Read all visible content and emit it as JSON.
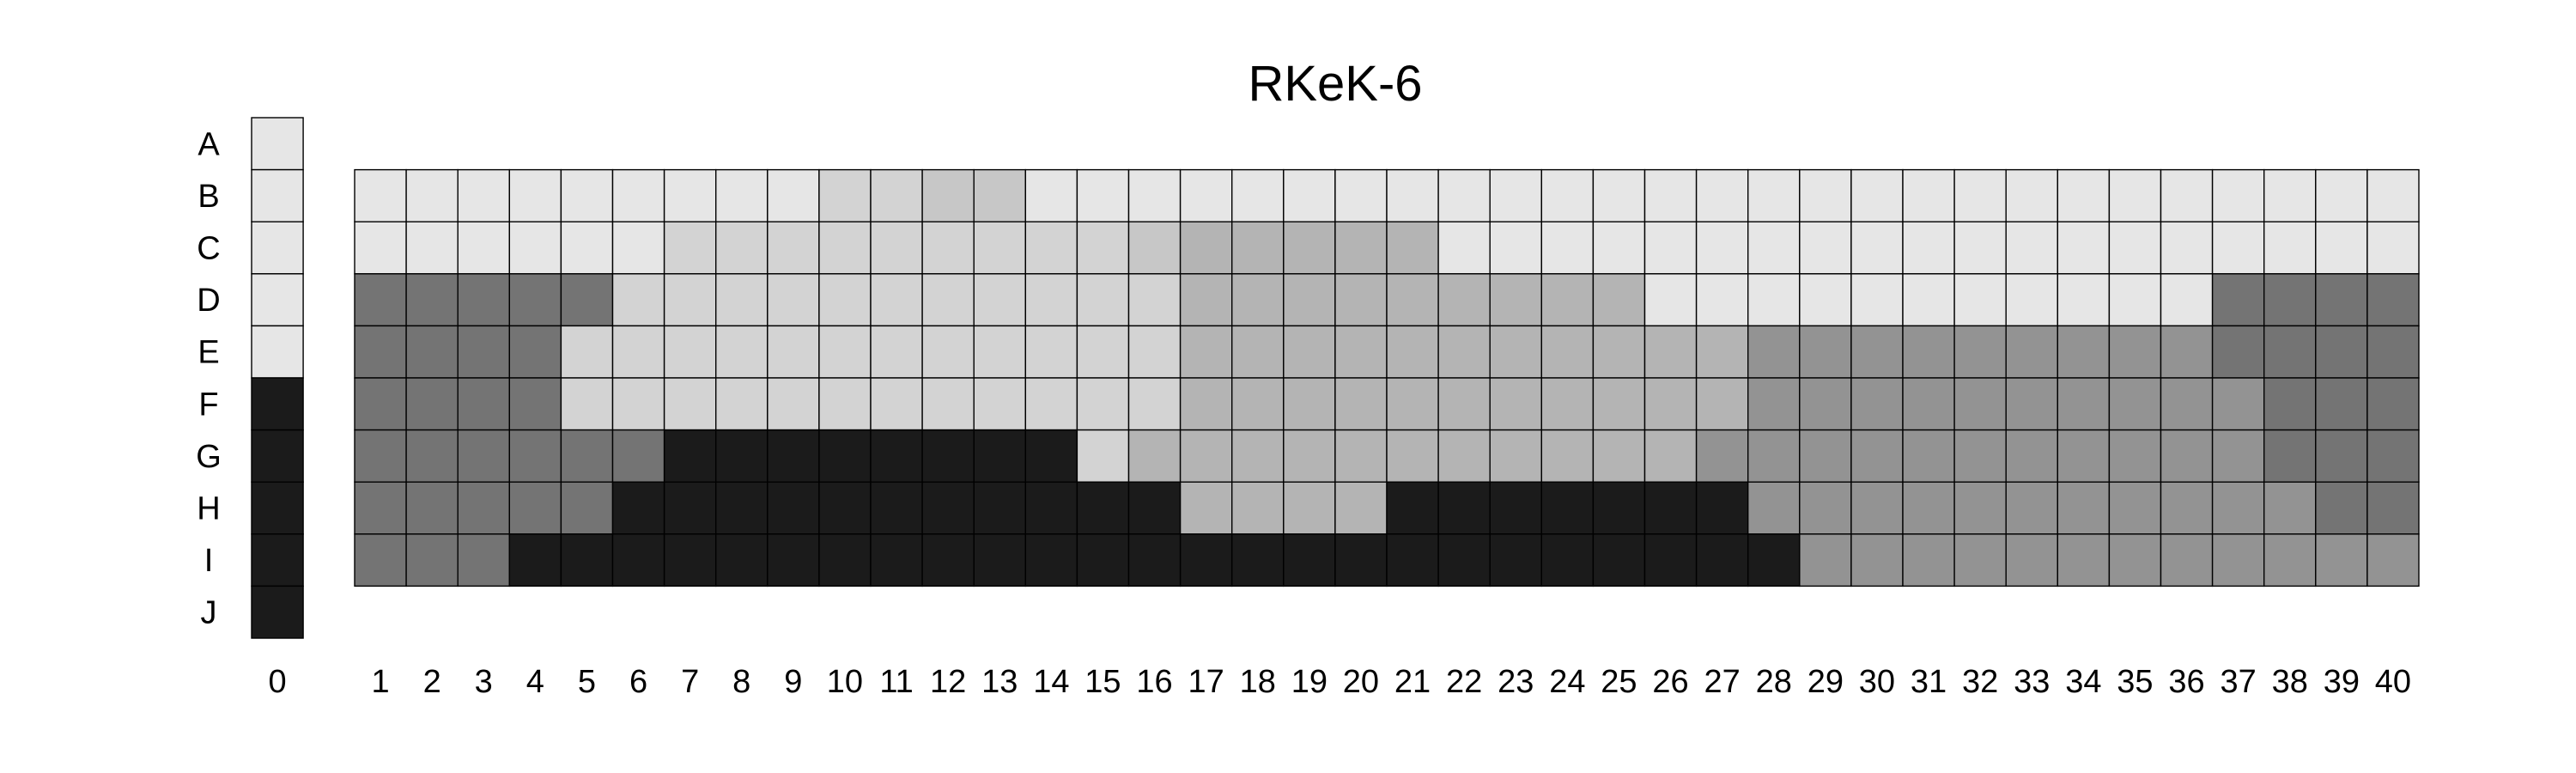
{
  "chart_data": {
    "type": "heatmap",
    "title": "RKeK-6",
    "xlabel": "",
    "ylabel": "",
    "rows": [
      "A",
      "B",
      "C",
      "D",
      "E",
      "F",
      "G",
      "H",
      "I",
      "J"
    ],
    "columns": [
      "0",
      "1",
      "2",
      "3",
      "4",
      "5",
      "6",
      "7",
      "8",
      "9",
      "10",
      "11",
      "12",
      "13",
      "14",
      "15",
      "16",
      "17",
      "18",
      "19",
      "20",
      "21",
      "22",
      "23",
      "24",
      "25",
      "26",
      "27",
      "28",
      "29",
      "30",
      "31",
      "32",
      "33",
      "34",
      "35",
      "36",
      "37",
      "38",
      "39",
      "40"
    ],
    "palette": {
      "1": "#e6e6e6",
      "2": "#d3d3d3",
      "3": "#c7c7c7",
      "4": "#b4b4b4",
      "5": "#aeaeae",
      "6": "#939393",
      "7": "#747474",
      "8": "#1b1b1b"
    },
    "level_scale": "1 = lightest gray, 8 = near black",
    "legend_column": {
      "label": "0",
      "levels": [
        1,
        1,
        1,
        1,
        1,
        8,
        8,
        8,
        8,
        8
      ]
    },
    "grid_rows": {
      "B": [
        1,
        1,
        1,
        1,
        1,
        1,
        1,
        1,
        1,
        2,
        2,
        3,
        3,
        1,
        1,
        1,
        1,
        1,
        1,
        1,
        1,
        1,
        1,
        1,
        1,
        1,
        1,
        1,
        1,
        1,
        1,
        1,
        1,
        1,
        1,
        1,
        1,
        1,
        1,
        1
      ],
      "C": [
        1,
        1,
        1,
        1,
        1,
        1,
        2,
        2,
        2,
        2,
        2,
        2,
        2,
        2,
        2,
        3,
        4,
        4,
        4,
        4,
        4,
        1,
        1,
        1,
        1,
        1,
        1,
        1,
        1,
        1,
        1,
        1,
        1,
        1,
        1,
        1,
        1,
        1,
        1,
        1
      ],
      "D": [
        7,
        7,
        7,
        7,
        7,
        2,
        2,
        2,
        2,
        2,
        2,
        2,
        2,
        2,
        2,
        2,
        4,
        4,
        4,
        4,
        4,
        4,
        4,
        4,
        4,
        1,
        1,
        1,
        1,
        1,
        1,
        1,
        1,
        1,
        1,
        1,
        7,
        7,
        7,
        7
      ],
      "E": [
        7,
        7,
        7,
        7,
        2,
        2,
        2,
        2,
        2,
        2,
        2,
        2,
        2,
        2,
        2,
        2,
        4,
        4,
        4,
        4,
        4,
        4,
        4,
        4,
        4,
        4,
        4,
        6,
        6,
        6,
        6,
        6,
        6,
        6,
        6,
        6,
        7,
        7,
        7,
        7
      ],
      "F": [
        7,
        7,
        7,
        7,
        2,
        2,
        2,
        2,
        2,
        2,
        2,
        2,
        2,
        2,
        2,
        2,
        4,
        4,
        4,
        4,
        4,
        4,
        4,
        4,
        4,
        4,
        4,
        6,
        6,
        6,
        6,
        6,
        6,
        6,
        6,
        6,
        6,
        7,
        7,
        7
      ],
      "G": [
        7,
        7,
        7,
        7,
        7,
        7,
        8,
        8,
        8,
        8,
        8,
        8,
        8,
        8,
        2,
        4,
        4,
        4,
        4,
        4,
        4,
        4,
        4,
        4,
        4,
        4,
        6,
        6,
        6,
        6,
        6,
        6,
        6,
        6,
        6,
        6,
        6,
        7,
        7,
        7
      ],
      "H": [
        7,
        7,
        7,
        7,
        7,
        8,
        8,
        8,
        8,
        8,
        8,
        8,
        8,
        8,
        8,
        8,
        4,
        4,
        4,
        4,
        8,
        8,
        8,
        8,
        8,
        8,
        8,
        6,
        6,
        6,
        6,
        6,
        6,
        6,
        6,
        6,
        6,
        6,
        7,
        7
      ],
      "I": [
        7,
        7,
        7,
        8,
        8,
        8,
        8,
        8,
        8,
        8,
        8,
        8,
        8,
        8,
        8,
        8,
        8,
        8,
        8,
        8,
        8,
        8,
        8,
        8,
        8,
        8,
        8,
        8,
        6,
        6,
        6,
        6,
        6,
        6,
        6,
        6,
        6,
        6,
        6,
        6
      ]
    },
    "grid": true,
    "legend": "none"
  }
}
